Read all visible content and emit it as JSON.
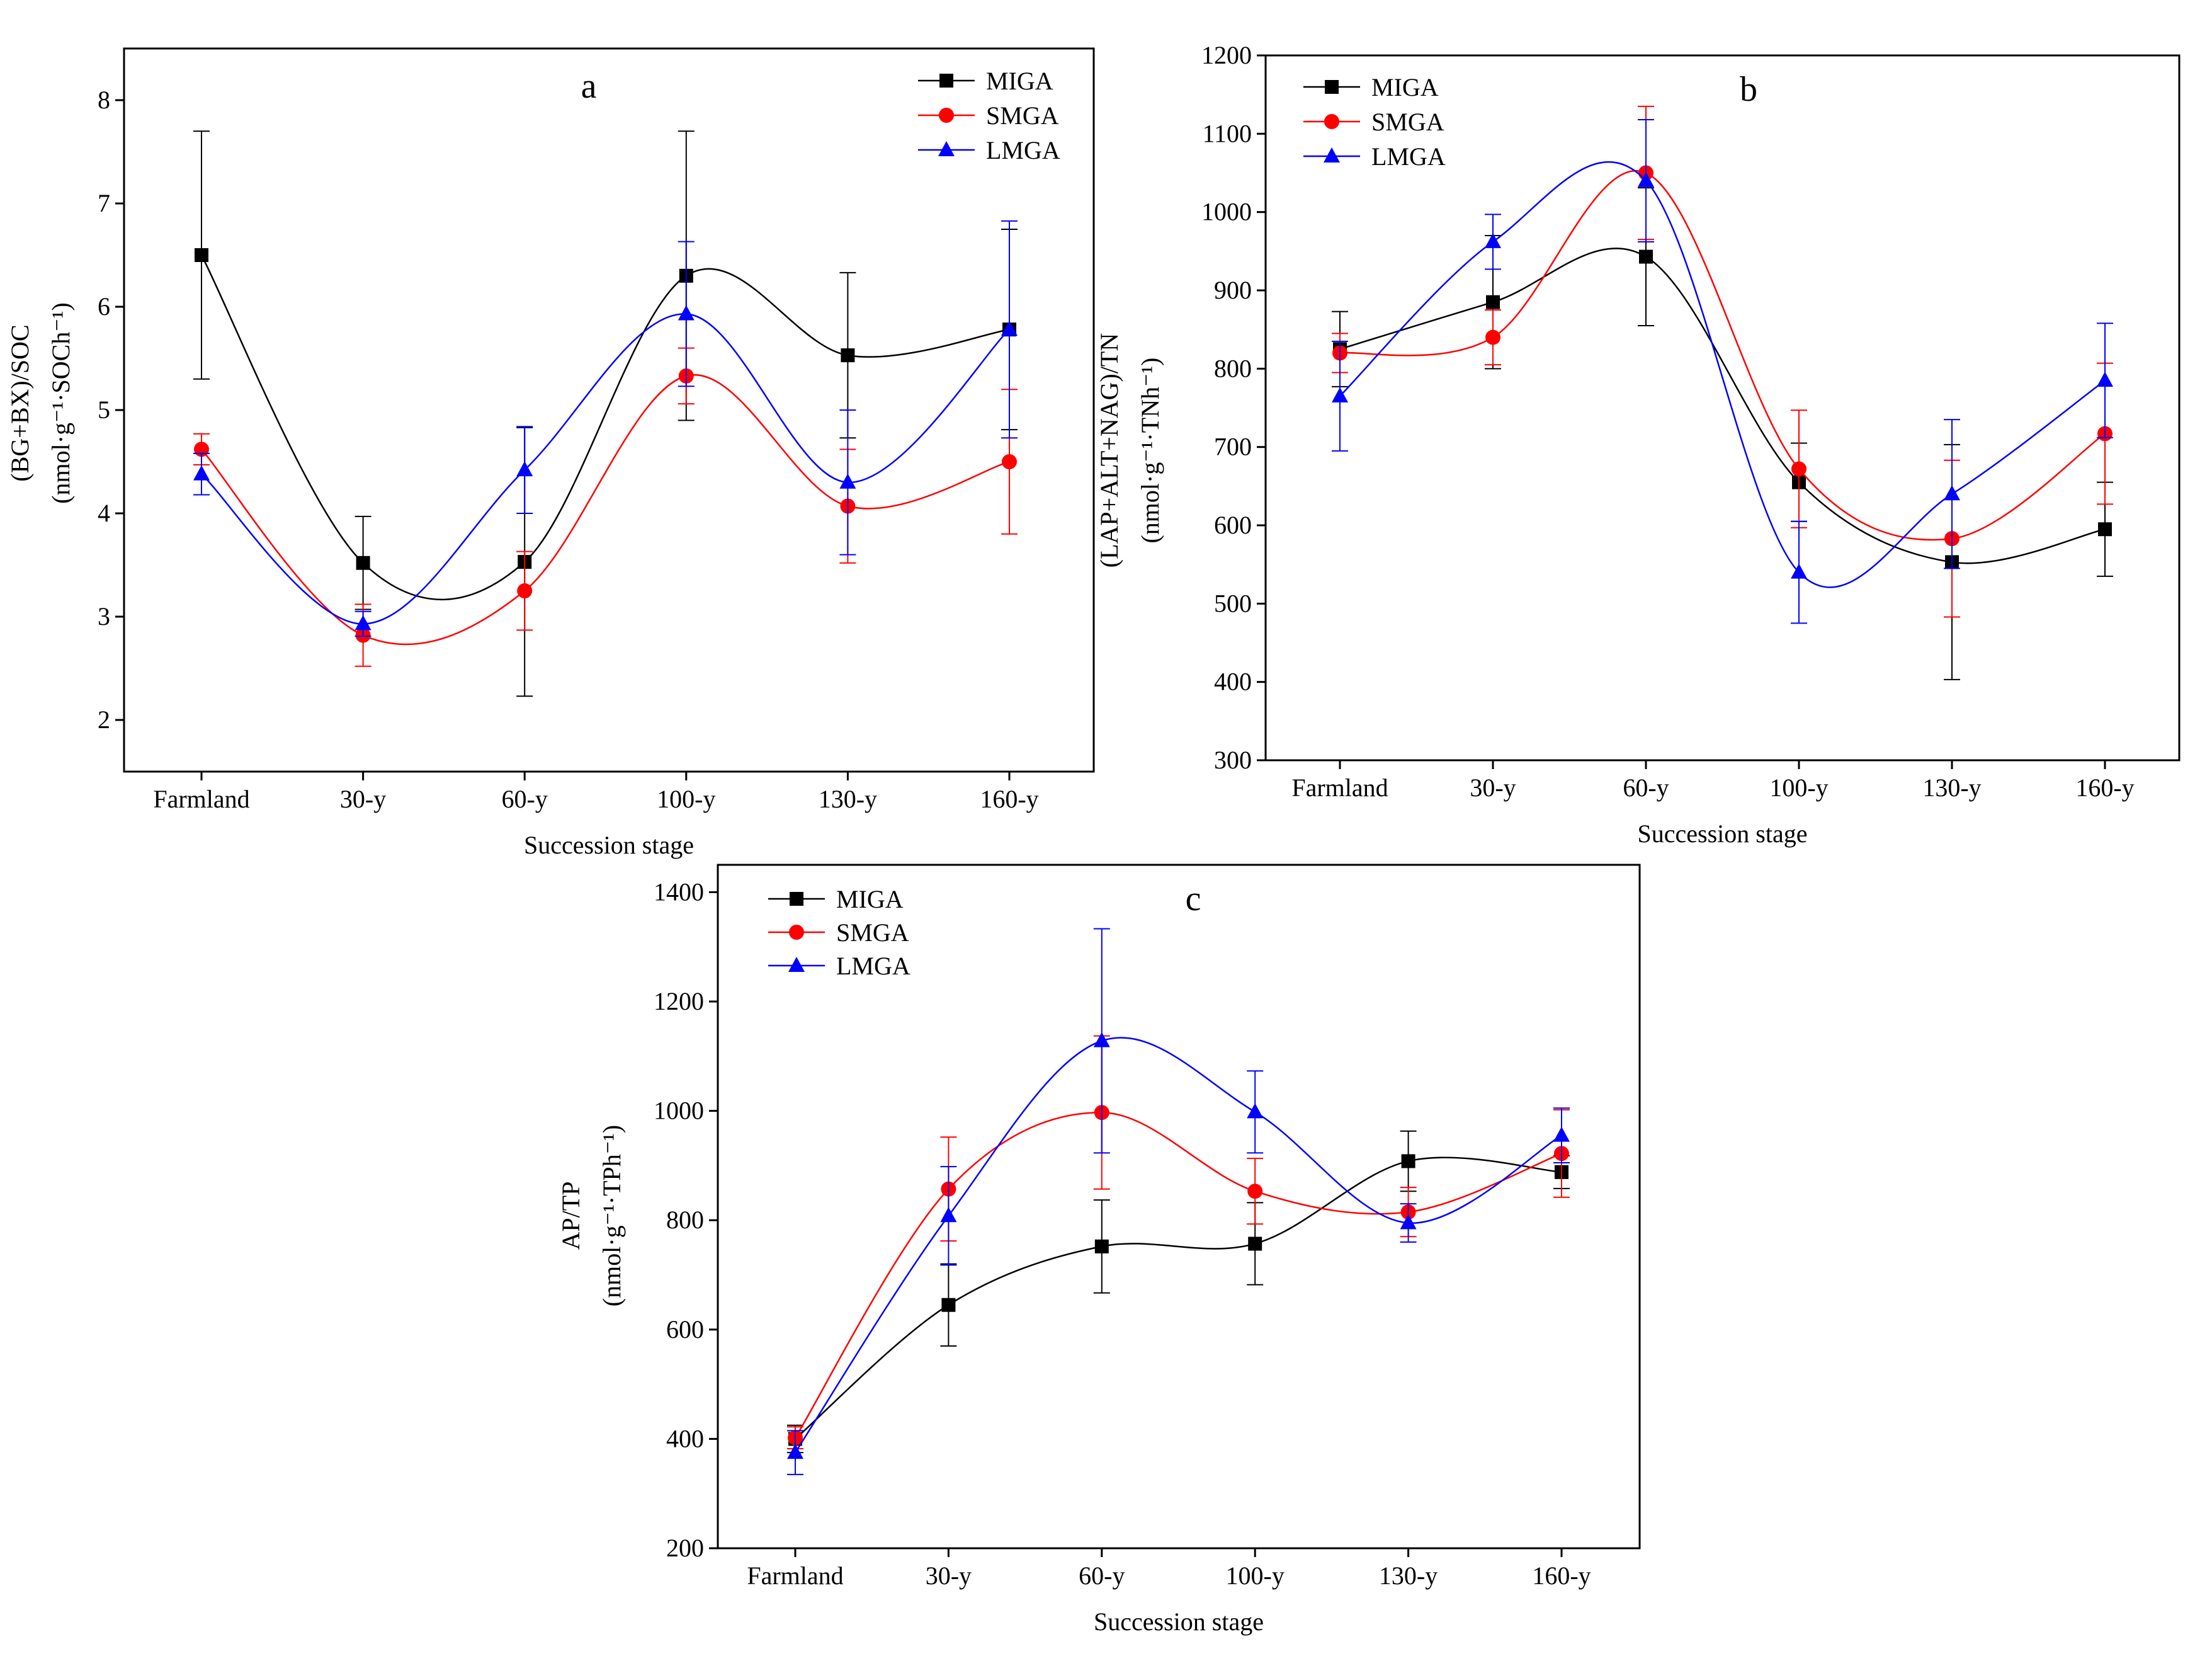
{
  "legend": [
    "MIGA",
    "SMGA",
    "LMGA"
  ],
  "colors": {
    "MIGA": "#000000",
    "SMGA": "#ff0000",
    "LMGA": "#0000ff"
  },
  "chart_data": [
    {
      "type": "line",
      "panel_label": "a",
      "xlabel": "Succession stage",
      "ylabel_line1": "(BG+BX)/SOC",
      "ylabel_line2": "(nmol·g⁻¹·SOCh⁻¹)",
      "categories": [
        "Farmland",
        "30-y",
        "60-y",
        "100-y",
        "130-y",
        "160-y"
      ],
      "ylim": [
        1.5,
        8.5
      ],
      "yticks": [
        2,
        3,
        4,
        5,
        6,
        7,
        8
      ],
      "legend_position": "top-right",
      "series": [
        {
          "name": "MIGA",
          "values": [
            6.5,
            3.52,
            3.53,
            6.3,
            5.53,
            5.78
          ],
          "errors": [
            1.2,
            0.45,
            1.3,
            1.4,
            0.8,
            0.97
          ]
        },
        {
          "name": "SMGA",
          "values": [
            4.62,
            2.82,
            3.25,
            5.33,
            4.07,
            4.5
          ],
          "errors": [
            0.15,
            0.3,
            0.38,
            0.27,
            0.55,
            0.7
          ]
        },
        {
          "name": "LMGA",
          "values": [
            4.38,
            2.93,
            4.42,
            5.93,
            4.3,
            5.78
          ],
          "errors": [
            0.2,
            0.12,
            0.42,
            0.7,
            0.7,
            1.05
          ]
        }
      ]
    },
    {
      "type": "line",
      "panel_label": "b",
      "xlabel": "Succession stage",
      "ylabel_line1": "(LAP+ALT+NAG)/TN",
      "ylabel_line2": "(nmol·g⁻¹·TNh⁻¹)",
      "categories": [
        "Farmland",
        "30-y",
        "60-y",
        "100-y",
        "130-y",
        "160-y"
      ],
      "ylim": [
        300,
        1200
      ],
      "yticks": [
        300,
        400,
        500,
        600,
        700,
        800,
        900,
        1000,
        1100,
        1200
      ],
      "legend_position": "top-left",
      "series": [
        {
          "name": "MIGA",
          "values": [
            825,
            885,
            943,
            655,
            553,
            595
          ],
          "errors": [
            48,
            85,
            88,
            50,
            150,
            60
          ]
        },
        {
          "name": "SMGA",
          "values": [
            820,
            840,
            1050,
            672,
            583,
            717
          ],
          "errors": [
            25,
            35,
            85,
            75,
            100,
            90
          ]
        },
        {
          "name": "LMGA",
          "values": [
            765,
            962,
            1040,
            540,
            640,
            785
          ],
          "errors": [
            70,
            35,
            78,
            65,
            95,
            73
          ]
        }
      ]
    },
    {
      "type": "line",
      "panel_label": "c",
      "xlabel": "Succession stage",
      "ylabel_line1": "AP/TP",
      "ylabel_line2": "(nmol·g⁻¹·TPh⁻¹)",
      "categories": [
        "Farmland",
        "30-y",
        "60-y",
        "100-y",
        "130-y",
        "160-y"
      ],
      "ylim": [
        200,
        1450
      ],
      "yticks": [
        200,
        400,
        600,
        800,
        1000,
        1200,
        1400
      ],
      "legend_position": "top-left",
      "series": [
        {
          "name": "MIGA",
          "values": [
            400,
            645,
            752,
            757,
            908,
            888
          ],
          "errors": [
            25,
            75,
            85,
            75,
            55,
            30
          ]
        },
        {
          "name": "SMGA",
          "values": [
            402,
            857,
            997,
            853,
            815,
            922
          ],
          "errors": [
            20,
            95,
            140,
            60,
            45,
            80
          ]
        },
        {
          "name": "LMGA",
          "values": [
            375,
            808,
            1128,
            998,
            795,
            955
          ],
          "errors": [
            40,
            90,
            205,
            75,
            35,
            50
          ]
        }
      ]
    }
  ]
}
